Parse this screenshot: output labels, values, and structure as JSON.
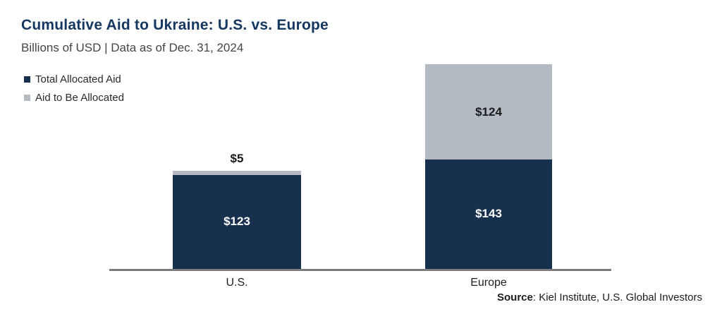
{
  "chart_data": {
    "type": "bar",
    "stacked": true,
    "title": "Cumulative Aid to Ukraine: U.S. vs. Europe",
    "subtitle": "Billions of USD | Data as of Dec. 31, 2024",
    "unit": "USD billions",
    "categories": [
      "U.S.",
      "Europe"
    ],
    "series": [
      {
        "name": "Total Allocated Aid",
        "values": [
          123,
          143
        ],
        "labels": [
          "$123",
          "$143"
        ],
        "color": "#17304e",
        "label_color": "#ffffff"
      },
      {
        "name": "Aid to Be Allocated",
        "values": [
          5,
          124
        ],
        "labels": [
          "$5",
          "$124"
        ],
        "color": "#b3bac2",
        "label_color": "#1a1a1a"
      }
    ],
    "totals": [
      128,
      267
    ],
    "legend_position": "top-left",
    "grid": false,
    "y_axis_visible": false,
    "axis_line_color": "#7c7c7c",
    "source": "Source: Kiel Institute, U.S. Global Investors"
  },
  "source": {
    "label": "Source",
    "separator": ": ",
    "text": "Kiel Institute, U.S. Global Investors"
  }
}
